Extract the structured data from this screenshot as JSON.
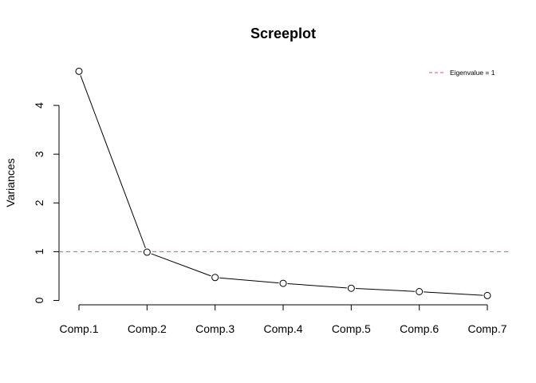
{
  "chart_data": {
    "type": "line",
    "title": "Screeplot",
    "xlabel": "",
    "ylabel": "Variances",
    "categories": [
      "Comp.1",
      "Comp.2",
      "Comp.3",
      "Comp.4",
      "Comp.5",
      "Comp.6",
      "Comp.7"
    ],
    "series": [
      {
        "values": [
          4.7,
          0.99,
          0.47,
          0.35,
          0.25,
          0.18,
          0.1
        ]
      }
    ],
    "yticks": [
      0,
      1,
      2,
      3,
      4
    ],
    "ylim": [
      0,
      4.7
    ],
    "reference_line": {
      "y": 1,
      "label": "Eigenvalue = 1",
      "color": "#df536b",
      "style": "dashed"
    },
    "legend": {
      "position": "top-right",
      "entries": [
        "Eigenvalue = 1"
      ]
    },
    "grid": false,
    "colors": {
      "line": "#000000",
      "points": "#000000",
      "reference": "#df536b"
    }
  }
}
